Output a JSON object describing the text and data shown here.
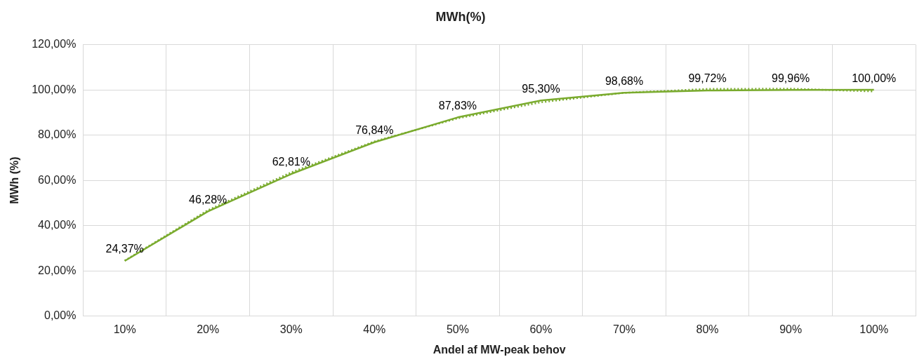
{
  "chart_data": {
    "type": "line",
    "title": "MWh(%)",
    "xlabel": "Andel af MW-peak behov",
    "ylabel": "MWh (%)",
    "categories": [
      "10%",
      "20%",
      "30%",
      "40%",
      "50%",
      "60%",
      "70%",
      "80%",
      "90%",
      "100%"
    ],
    "series": [
      {
        "color": "#7aab2e",
        "values": [
          24.37,
          46.28,
          62.81,
          76.84,
          87.83,
          95.3,
          98.68,
          99.72,
          99.96,
          100
        ],
        "value_labels": [
          "24,37%",
          "46,28%",
          "62,81%",
          "76,84%",
          "87,83%",
          "95,30%",
          "98,68%",
          "99,72%",
          "99,96%",
          "100,00%"
        ],
        "line_style": "solid"
      },
      {
        "color": "#7aab2e",
        "values": [
          24.5,
          46.8,
          63.5,
          77.2,
          87.4,
          94.5,
          98.7,
          100.4,
          100.5,
          99.3
        ],
        "line_style": "dotted"
      }
    ],
    "ylim": [
      0,
      120
    ],
    "yticks": [
      {
        "value": 0,
        "label": "0,00%"
      },
      {
        "value": 20,
        "label": "20,00%"
      },
      {
        "value": 40,
        "label": "40,00%"
      },
      {
        "value": 60,
        "label": "60,00%"
      },
      {
        "value": 80,
        "label": "80,00%"
      },
      {
        "value": 100,
        "label": "100,00%"
      },
      {
        "value": 120,
        "label": "120,00%"
      }
    ],
    "grid": true,
    "legend": false,
    "marker": "none"
  }
}
